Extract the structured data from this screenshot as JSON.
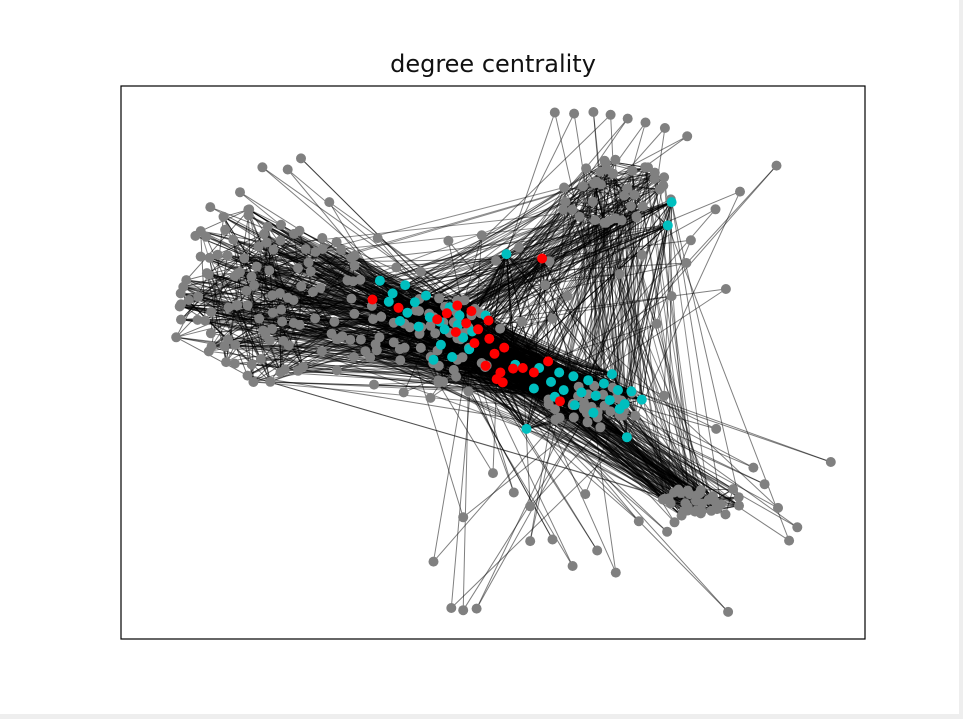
{
  "chart_data": {
    "type": "network",
    "title": "degree centrality",
    "xlabel": "",
    "ylabel": "",
    "xlim": [
      0,
      100
    ],
    "ylim": [
      0,
      100
    ],
    "grid": false,
    "legend": "none",
    "colors": {
      "edge": "#000000",
      "peripheral_node": "#808080",
      "mid_centrality_node": "#00bfbf",
      "high_centrality_node": "#ff0000",
      "frame": "#000000"
    },
    "node_groups": {
      "left_fan": {
        "cx": 20,
        "cy": 62,
        "rx": 15,
        "ry": 16,
        "count": 95,
        "seed": 11
      },
      "upper_right": {
        "cx": 66,
        "cy": 81,
        "rx": 8,
        "ry": 6,
        "count": 38,
        "seed": 22
      },
      "center": {
        "cx": 42,
        "cy": 54,
        "rx": 10,
        "ry": 8,
        "count": 60,
        "seed": 33
      },
      "lower_right": {
        "cx": 64,
        "cy": 42,
        "rx": 7,
        "ry": 4,
        "count": 34,
        "seed": 44
      },
      "diagonal_tail": {
        "cx": 78,
        "cy": 25,
        "rx": 6,
        "ry": 3,
        "count": 36,
        "seed": 55
      }
    },
    "peripheral_nodes": [
      [
        58.3,
        95.2
      ],
      [
        60.9,
        95.0
      ],
      [
        63.5,
        95.3
      ],
      [
        65.8,
        94.8
      ],
      [
        68.1,
        94.1
      ],
      [
        70.5,
        93.4
      ],
      [
        73.1,
        92.4
      ],
      [
        76.1,
        90.9
      ],
      [
        88.1,
        85.6
      ],
      [
        83.2,
        80.9
      ],
      [
        79.9,
        77.7
      ],
      [
        73.9,
        79.5
      ],
      [
        81.3,
        63.3
      ],
      [
        95.4,
        32.0
      ],
      [
        90.9,
        20.2
      ],
      [
        89.8,
        17.8
      ],
      [
        81.6,
        4.9
      ],
      [
        60.7,
        13.2
      ],
      [
        55.0,
        17.7
      ],
      [
        52.8,
        26.5
      ],
      [
        44.4,
        5.6
      ],
      [
        46.0,
        5.2
      ],
      [
        47.8,
        5.5
      ],
      [
        41.6,
        43.6
      ],
      [
        46.7,
        44.8
      ],
      [
        62.4,
        26.2
      ],
      [
        69.6,
        21.3
      ],
      [
        74.4,
        21.1
      ],
      [
        73.4,
        19.4
      ],
      [
        24.2,
        86.9
      ],
      [
        22.4,
        84.9
      ],
      [
        19.0,
        85.3
      ],
      [
        16.0,
        80.8
      ],
      [
        12.0,
        78.1
      ],
      [
        10.0,
        72.9
      ],
      [
        9.1,
        61.3
      ],
      [
        10.3,
        57.7
      ],
      [
        11.8,
        52.0
      ],
      [
        15.3,
        49.8
      ],
      [
        23.8,
        48.5
      ],
      [
        29.0,
        48.6
      ],
      [
        31.3,
        51.0
      ],
      [
        15.6,
        60.3
      ],
      [
        17.9,
        64.0
      ],
      [
        25.2,
        68.1
      ],
      [
        31.2,
        64.7
      ],
      [
        37.0,
        67.2
      ],
      [
        40.3,
        66.4
      ],
      [
        53.9,
        57.4
      ],
      [
        58.0,
        57.9
      ],
      [
        50.4,
        68.4
      ],
      [
        57.6,
        68.3
      ],
      [
        76.6,
        72.1
      ],
      [
        76.0,
        68.0
      ],
      [
        74.0,
        62.0
      ],
      [
        72.0,
        57.0
      ],
      [
        73.0,
        44.0
      ],
      [
        80.0,
        38.0
      ],
      [
        85.0,
        31.0
      ],
      [
        86.5,
        28.0
      ],
      [
        88.3,
        23.7
      ],
      [
        50.0,
        30.0
      ],
      [
        46.0,
        22.0
      ],
      [
        42.0,
        14.0
      ],
      [
        55.0,
        24.0
      ],
      [
        58.0,
        18.0
      ],
      [
        64.0,
        16.0
      ],
      [
        66.5,
        12.0
      ],
      [
        38.0,
        44.6
      ],
      [
        34.0,
        46.0
      ],
      [
        27.0,
        52.0
      ],
      [
        20.0,
        54.0
      ],
      [
        13.0,
        69.5
      ],
      [
        14.0,
        74.0
      ],
      [
        21.5,
        74.9
      ],
      [
        28.0,
        79.0
      ],
      [
        34.5,
        72.5
      ],
      [
        44.0,
        72.0
      ],
      [
        48.5,
        73.0
      ],
      [
        53.5,
        70.8
      ],
      [
        57.0,
        64.0
      ],
      [
        60.0,
        62.0
      ],
      [
        67.0,
        66.0
      ],
      [
        70.0,
        69.5
      ]
    ],
    "mid_centrality_nodes": [
      [
        34.8,
        64.8
      ],
      [
        36.5,
        62.5
      ],
      [
        38.2,
        64.0
      ],
      [
        39.5,
        60.9
      ],
      [
        41.0,
        62.1
      ],
      [
        41.5,
        58.2
      ],
      [
        42.8,
        57.4
      ],
      [
        43.5,
        56.0
      ],
      [
        44.2,
        60.0
      ],
      [
        45.3,
        56.8
      ],
      [
        46.0,
        54.5
      ],
      [
        46.8,
        52.4
      ],
      [
        43.0,
        53.2
      ],
      [
        40.0,
        56.5
      ],
      [
        37.5,
        57.5
      ],
      [
        38.5,
        59.0
      ],
      [
        44.5,
        51.0
      ],
      [
        42.0,
        50.5
      ],
      [
        45.5,
        58.5
      ],
      [
        47.2,
        55.6
      ],
      [
        51.8,
        69.6
      ],
      [
        56.2,
        49.0
      ],
      [
        57.8,
        46.5
      ],
      [
        58.9,
        48.2
      ],
      [
        59.5,
        45.0
      ],
      [
        60.8,
        47.5
      ],
      [
        61.9,
        44.6
      ],
      [
        62.8,
        46.8
      ],
      [
        63.8,
        44.0
      ],
      [
        64.9,
        46.2
      ],
      [
        65.7,
        43.2
      ],
      [
        66.8,
        45.0
      ],
      [
        67.7,
        42.5
      ],
      [
        68.6,
        44.8
      ],
      [
        61.0,
        42.3
      ],
      [
        58.3,
        43.8
      ],
      [
        55.5,
        45.3
      ],
      [
        54.5,
        38.0
      ],
      [
        63.5,
        40.9
      ],
      [
        67.0,
        41.6
      ],
      [
        68.0,
        36.5
      ],
      [
        70.0,
        43.3
      ],
      [
        66.0,
        47.9
      ],
      [
        74.0,
        79.0
      ],
      [
        73.5,
        74.8
      ],
      [
        36.0,
        61.0
      ],
      [
        49.0,
        58.5
      ],
      [
        53.0,
        49.6
      ]
    ],
    "high_centrality_nodes": [
      [
        33.8,
        61.4
      ],
      [
        37.3,
        59.9
      ],
      [
        42.5,
        57.8
      ],
      [
        43.8,
        58.9
      ],
      [
        45.2,
        60.3
      ],
      [
        46.4,
        57.1
      ],
      [
        47.1,
        59.3
      ],
      [
        48.0,
        56.0
      ],
      [
        49.4,
        57.6
      ],
      [
        47.5,
        53.5
      ],
      [
        49.5,
        54.3
      ],
      [
        50.2,
        51.6
      ],
      [
        51.5,
        52.7
      ],
      [
        49.0,
        49.4
      ],
      [
        51.0,
        48.2
      ],
      [
        52.7,
        48.9
      ],
      [
        54.0,
        49.0
      ],
      [
        55.5,
        48.2
      ],
      [
        57.4,
        50.2
      ],
      [
        51.3,
        46.4
      ],
      [
        59.0,
        43.0
      ],
      [
        56.6,
        68.8
      ],
      [
        45.0,
        55.5
      ],
      [
        50.5,
        47.0
      ]
    ]
  }
}
